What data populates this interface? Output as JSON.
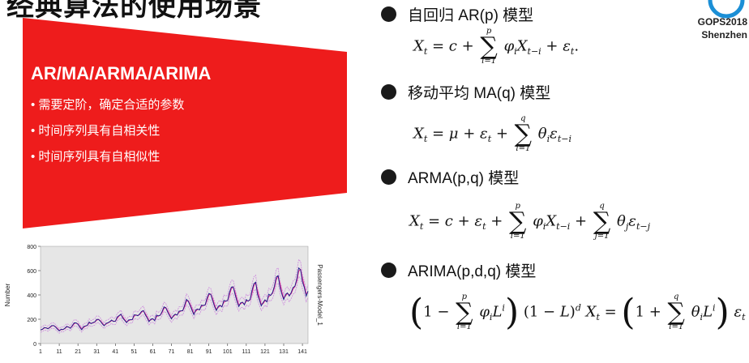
{
  "slide": {
    "title": "经典算法的使用场景",
    "panel": {
      "heading": "AR/MA/ARMA/ARIMA",
      "bullets": [
        "需要定阶，确定合适的参数",
        "时间序列具有自相关性",
        "时间序列具有自相似性"
      ],
      "color": "#ee1c1c"
    },
    "models": [
      {
        "label": "自回归 AR(p) 模型"
      },
      {
        "label": "移动平均 MA(q) 模型"
      },
      {
        "label": "ARMA(p,q) 模型"
      },
      {
        "label": "ARIMA(p,d,q) 模型"
      }
    ],
    "logo": {
      "line1": "GOPS2018",
      "line2": "Shenzhen"
    }
  },
  "chart_data": {
    "type": "line",
    "ylabel": "Number",
    "series_label": "Passengers-Model_1",
    "ylim": [
      0,
      800
    ],
    "yticks": [
      "0",
      "200",
      "400",
      "600",
      "800"
    ],
    "xticks": [
      "1",
      "11",
      "21",
      "31",
      "41",
      "51",
      "61",
      "71",
      "81",
      "91",
      "101",
      "111",
      "121",
      "131",
      "141"
    ],
    "x_range": [
      1,
      144
    ],
    "values": [
      112,
      118,
      132,
      129,
      121,
      135,
      148,
      148,
      136,
      119,
      104,
      118,
      115,
      126,
      141,
      135,
      125,
      149,
      170,
      170,
      158,
      133,
      114,
      140,
      145,
      150,
      178,
      163,
      172,
      178,
      199,
      199,
      184,
      162,
      146,
      166,
      171,
      180,
      193,
      181,
      183,
      218,
      230,
      242,
      209,
      191,
      172,
      194,
      196,
      196,
      236,
      235,
      229,
      243,
      264,
      272,
      237,
      211,
      180,
      201,
      204,
      188,
      235,
      227,
      234,
      264,
      302,
      293,
      259,
      229,
      203,
      229,
      242,
      233,
      267,
      269,
      270,
      315,
      364,
      347,
      312,
      274,
      237,
      278,
      284,
      277,
      317,
      313,
      318,
      374,
      413,
      405,
      355,
      306,
      271,
      306,
      315,
      301,
      356,
      348,
      355,
      422,
      465,
      467,
      404,
      347,
      305,
      336,
      340,
      318,
      362,
      348,
      363,
      435,
      491,
      505,
      404,
      359,
      310,
      337,
      360,
      342,
      406,
      396,
      420,
      472,
      548,
      559,
      463,
      407,
      362,
      405,
      417,
      391,
      419,
      461,
      472,
      535,
      622,
      606,
      508,
      461,
      390,
      432
    ],
    "colors": {
      "observed": "#1a1a8c",
      "fit": "#e0208a",
      "band": "#cc88dd",
      "background": "#e6e6e6"
    }
  }
}
